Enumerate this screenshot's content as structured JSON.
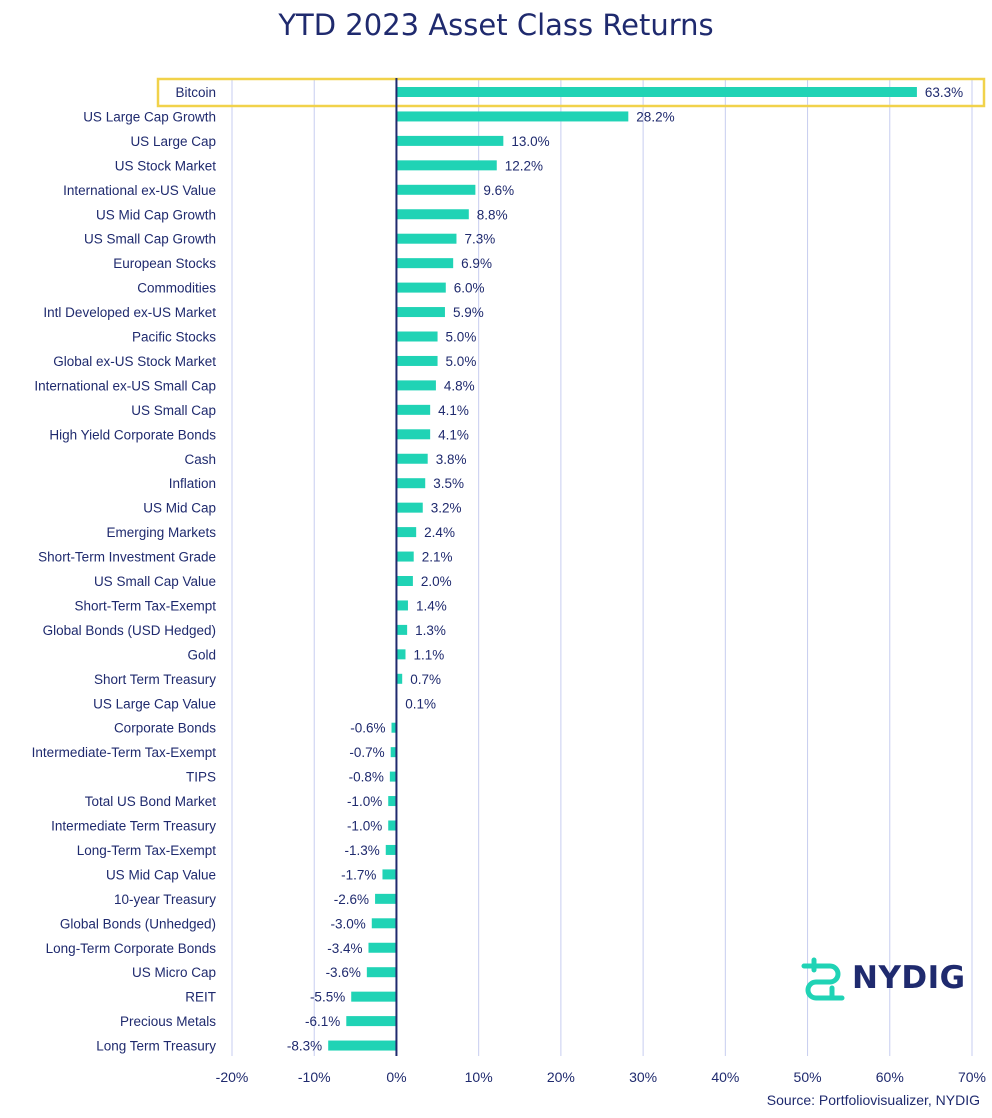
{
  "title": "YTD 2023 Asset Class Returns",
  "source": "Source: Portfoliovisualizer, NYDIG",
  "logo_text": "NYDIG",
  "colors": {
    "bar": "#20d3b5",
    "text": "#1f2a6e",
    "grid": "#c7cdf0",
    "highlight": "#f1d24a",
    "zero_line": "#1f2a6e"
  },
  "chart_data": {
    "type": "bar",
    "orientation": "horizontal",
    "title": "YTD 2023 Asset Class Returns",
    "xlim": [
      -20,
      70
    ],
    "ticks": [
      -20,
      -10,
      0,
      10,
      20,
      30,
      40,
      50,
      60,
      70
    ],
    "tick_labels": [
      "-20%",
      "-10%",
      "0%",
      "10%",
      "20%",
      "30%",
      "40%",
      "50%",
      "60%",
      "70%"
    ],
    "grid": true,
    "highlighted_category": "Bitcoin",
    "categories": [
      "Bitcoin",
      "US Large Cap Growth",
      "US Large Cap",
      "US Stock Market",
      "International ex-US Value",
      "US Mid Cap Growth",
      "US Small Cap Growth",
      "European Stocks",
      "Commodities",
      "Intl Developed ex-US Market",
      "Pacific Stocks",
      "Global ex-US Stock Market",
      "International ex-US Small Cap",
      "US Small Cap",
      "High Yield Corporate Bonds",
      "Cash",
      "Inflation",
      "US Mid Cap",
      "Emerging Markets",
      "Short-Term Investment Grade",
      "US Small Cap Value",
      "Short-Term Tax-Exempt",
      "Global Bonds (USD Hedged)",
      "Gold",
      "Short Term Treasury",
      "US Large Cap Value",
      "Corporate Bonds",
      "Intermediate-Term Tax-Exempt",
      "TIPS",
      "Total US Bond Market",
      "Intermediate Term Treasury",
      "Long-Term Tax-Exempt",
      "US Mid Cap Value",
      "10-year Treasury",
      "Global Bonds (Unhedged)",
      "Long-Term Corporate Bonds",
      "US Micro Cap",
      "REIT",
      "Precious Metals",
      "Long Term Treasury"
    ],
    "values": [
      63.3,
      28.2,
      13.0,
      12.2,
      9.6,
      8.8,
      7.3,
      6.9,
      6.0,
      5.9,
      5.0,
      5.0,
      4.8,
      4.1,
      4.1,
      3.8,
      3.5,
      3.2,
      2.4,
      2.1,
      2.0,
      1.4,
      1.3,
      1.1,
      0.7,
      0.1,
      -0.6,
      -0.7,
      -0.8,
      -1.0,
      -1.0,
      -1.3,
      -1.7,
      -2.6,
      -3.0,
      -3.4,
      -3.6,
      -5.5,
      -6.1,
      -8.3
    ],
    "value_labels": [
      "63.3%",
      "28.2%",
      "13.0%",
      "12.2%",
      "9.6%",
      "8.8%",
      "7.3%",
      "6.9%",
      "6.0%",
      "5.9%",
      "5.0%",
      "5.0%",
      "4.8%",
      "4.1%",
      "4.1%",
      "3.8%",
      "3.5%",
      "3.2%",
      "2.4%",
      "2.1%",
      "2.0%",
      "1.4%",
      "1.3%",
      "1.1%",
      "0.7%",
      "0.1%",
      "-0.6%",
      "-0.7%",
      "-0.8%",
      "-1.0%",
      "-1.0%",
      "-1.3%",
      "-1.7%",
      "-2.6%",
      "-3.0%",
      "-3.4%",
      "-3.6%",
      "-5.5%",
      "-6.1%",
      "-8.3%"
    ]
  }
}
